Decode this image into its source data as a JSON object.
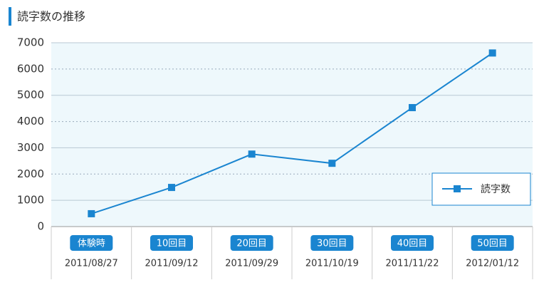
{
  "chart_data": {
    "type": "line",
    "title": "読字数の推移",
    "categories": [
      "体験時",
      "10回目",
      "20回目",
      "30回目",
      "40回目",
      "50回目"
    ],
    "dates": [
      "2011/08/27",
      "2011/09/12",
      "2011/09/29",
      "2011/10/19",
      "2011/11/22",
      "2012/01/12"
    ],
    "series": [
      {
        "name": "読字数",
        "color": "#1a85d0",
        "values": [
          490,
          1490,
          2760,
          2410,
          4530,
          6610
        ]
      }
    ],
    "ylim": [
      0,
      7000
    ],
    "yticks": [
      0,
      1000,
      2000,
      3000,
      4000,
      5000,
      6000,
      7000
    ],
    "grid": true,
    "legend": "lower-right"
  }
}
